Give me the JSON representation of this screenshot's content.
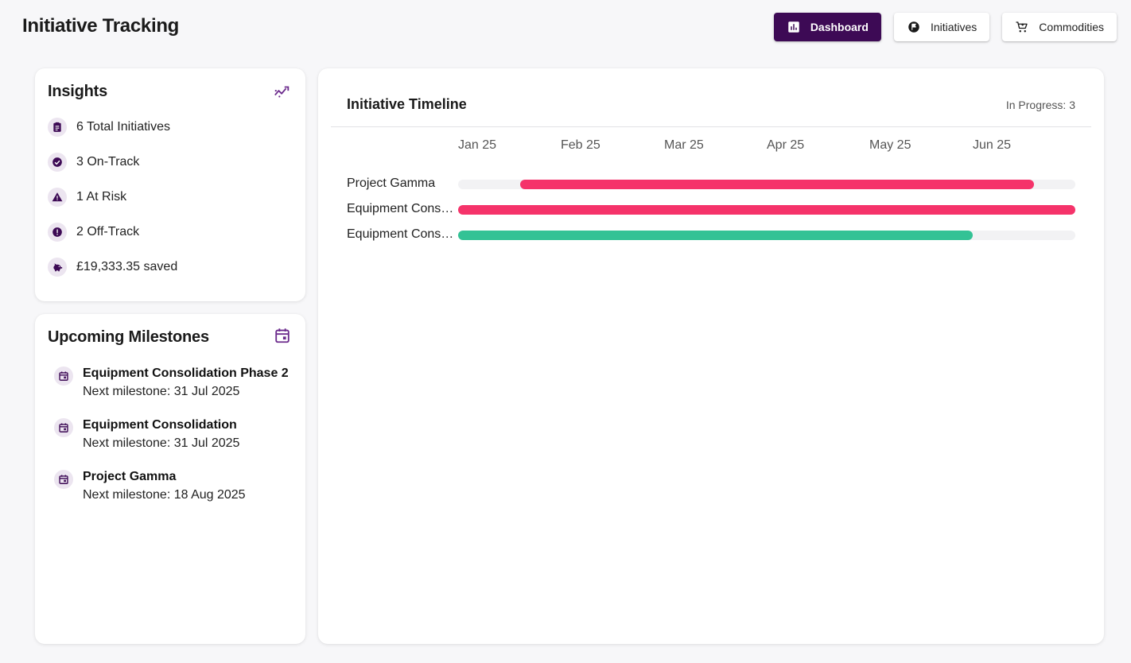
{
  "app": {
    "title": "Initiative Tracking"
  },
  "nav": [
    {
      "label": "Dashboard",
      "icon": "bar-chart-icon",
      "active": true
    },
    {
      "label": "Initiatives",
      "icon": "flag-circle-icon",
      "active": false
    },
    {
      "label": "Commodities",
      "icon": "shopping-cart-icon",
      "active": false
    }
  ],
  "insights": {
    "title": "Insights",
    "icon": "trending-icon",
    "items": [
      {
        "text": "6 Total Initiatives",
        "icon": "clipboard-icon"
      },
      {
        "text": "3 On-Track",
        "icon": "check-circle-icon"
      },
      {
        "text": "1 At Risk",
        "icon": "warning-icon"
      },
      {
        "text": "2 Off-Track",
        "icon": "error-icon"
      },
      {
        "text": "£19,333.35 saved",
        "icon": "piggy-bank-icon"
      }
    ]
  },
  "milestones": {
    "title": "Upcoming Milestones",
    "icon": "calendar-icon",
    "items": [
      {
        "name": "Equipment Consolidation Phase 2",
        "next": "Next milestone: 31 Jul 2025"
      },
      {
        "name": "Equipment Consolidation",
        "next": "Next milestone: 31 Jul 2025"
      },
      {
        "name": "Project Gamma",
        "next": "Next milestone: 18 Aug 2025"
      }
    ]
  },
  "timeline": {
    "title": "Initiative Timeline",
    "status": "In Progress: 3",
    "months": [
      "Jan 25",
      "Feb 25",
      "Mar 25",
      "Apr 25",
      "May 25",
      "Jun 25"
    ],
    "rows": [
      {
        "label": "Project Gamma",
        "start": 0.1,
        "end": 0.933,
        "color": "#f5336a"
      },
      {
        "label": "Equipment Conso…",
        "start": 0.0,
        "end": 1.0,
        "color": "#f5336a"
      },
      {
        "label": "Equipment Conso…",
        "start": 0.0,
        "end": 0.834,
        "color": "#33c295"
      }
    ]
  },
  "colors": {
    "brand": "#3d0a55",
    "off_track": "#f5336a",
    "on_track": "#33c295"
  }
}
